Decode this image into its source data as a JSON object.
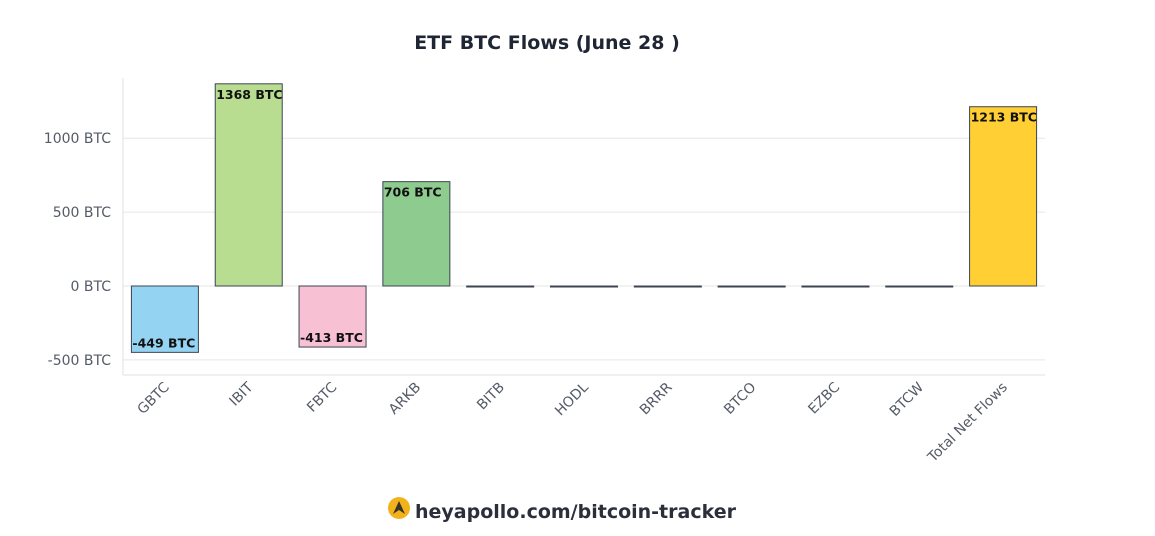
{
  "chart_data": {
    "type": "bar",
    "title": "ETF BTC Flows (June 28 )",
    "categories": [
      "GBTC",
      "IBIT",
      "FBTC",
      "ARKB",
      "BITB",
      "HODL",
      "BRRR",
      "BTCO",
      "EZBC",
      "BTCW",
      "Total Net Flows"
    ],
    "values": [
      -449,
      1368,
      -413,
      706,
      0,
      0,
      0,
      0,
      0,
      0,
      1213
    ],
    "data_labels": [
      "-449 BTC",
      "1368 BTC",
      "-413 BTC",
      "706 BTC",
      "",
      "",
      "",
      "",
      "",
      "",
      "1213 BTC"
    ],
    "colors": [
      "#94d3f2",
      "#b8dc90",
      "#f8c0d3",
      "#8dcb8f",
      "#cccccc",
      "#cccccc",
      "#cccccc",
      "#cccccc",
      "#cccccc",
      "#cccccc",
      "#ffcf33"
    ],
    "ylim": [
      -600,
      1420
    ],
    "y_ticks": [
      -500,
      0,
      500,
      1000
    ],
    "y_tick_labels": [
      "-500 BTC",
      "0 BTC",
      "500 BTC",
      "1000 BTC"
    ],
    "grid": true,
    "legend": "none"
  },
  "footer": {
    "text": "heyapollo.com/bitcoin-tracker",
    "logo_icon": "apollo-logo-icon"
  }
}
